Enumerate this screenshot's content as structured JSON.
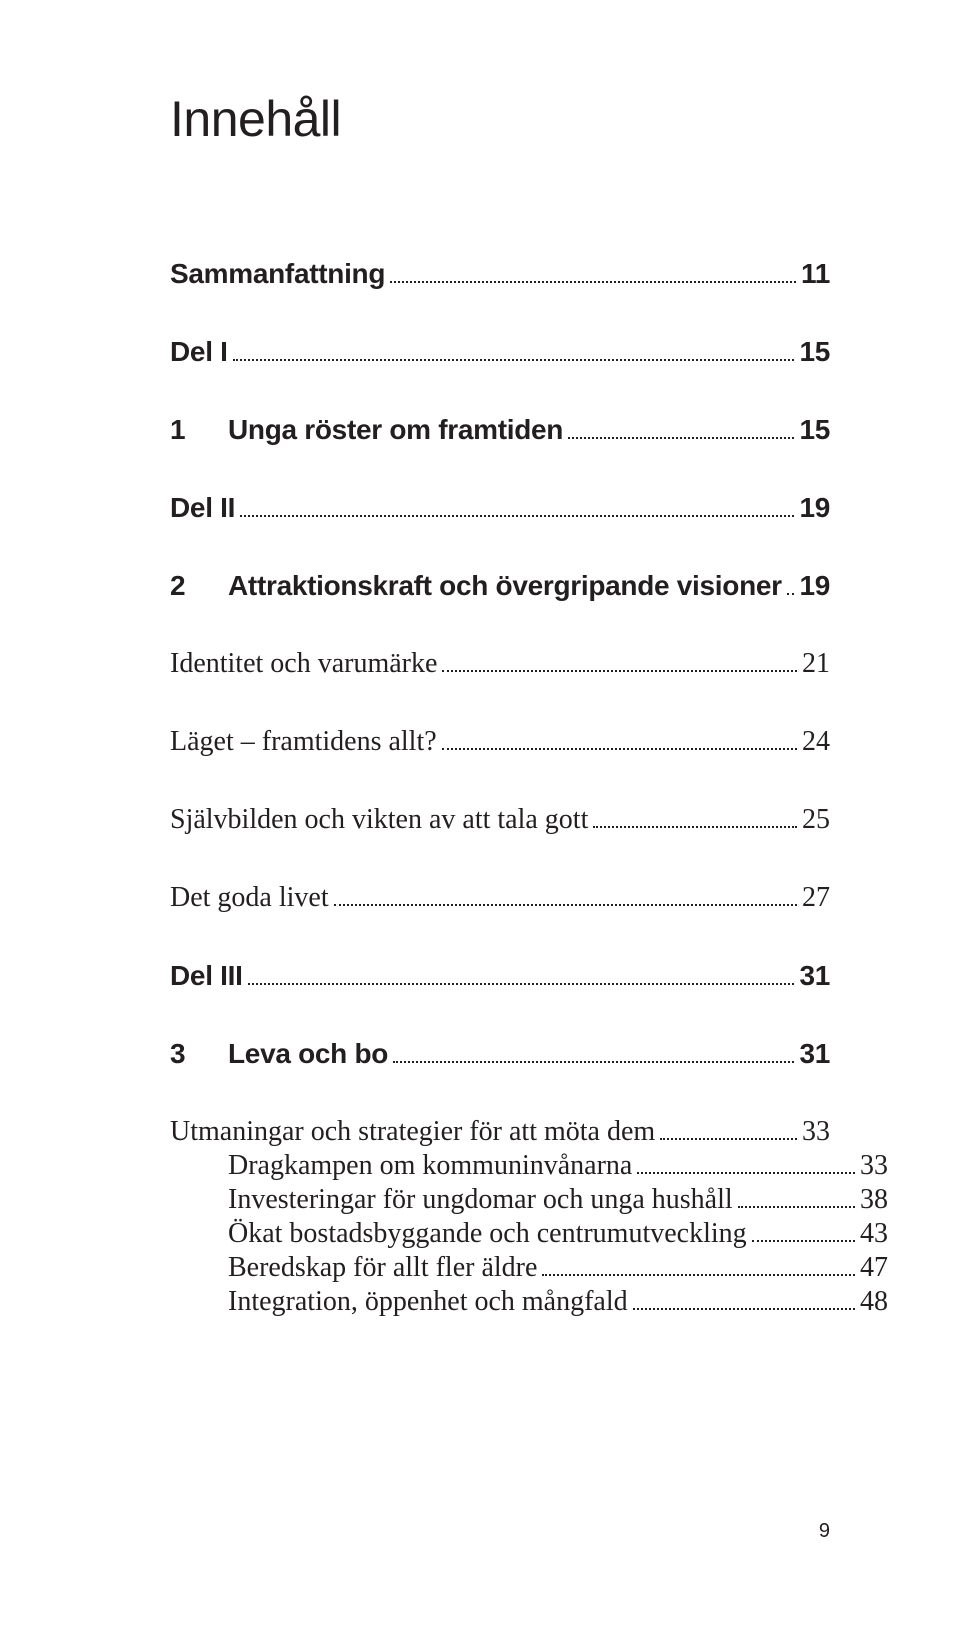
{
  "title": "Innehåll",
  "entries": [
    {
      "kind": "sans",
      "num": "",
      "label": "Sammanfattning",
      "page": "11",
      "gap": "none"
    },
    {
      "kind": "sans",
      "num": "",
      "label": "Del I",
      "page": "15",
      "gap": "l"
    },
    {
      "kind": "sans",
      "num": "1",
      "label": "Unga röster om framtiden",
      "page": "15",
      "gap": "l"
    },
    {
      "kind": "sans",
      "num": "",
      "label": "Del II",
      "page": "19",
      "gap": "l"
    },
    {
      "kind": "sans",
      "num": "2",
      "label": "Attraktionskraft och övergripande visioner",
      "page": "19",
      "gap": "l"
    },
    {
      "kind": "serif",
      "num": "",
      "label": "Identitet och varumärke",
      "page": "21",
      "gap": "l"
    },
    {
      "kind": "serif",
      "num": "",
      "label": "Läget – framtidens allt?",
      "page": "24",
      "gap": "l"
    },
    {
      "kind": "serif",
      "num": "",
      "label": "Självbilden och vikten av att tala gott",
      "page": "25",
      "gap": "l"
    },
    {
      "kind": "serif",
      "num": "",
      "label": "Det goda livet",
      "page": "27",
      "gap": "l"
    },
    {
      "kind": "sans",
      "num": "",
      "label": "Del III",
      "page": "31",
      "gap": "l"
    },
    {
      "kind": "sans",
      "num": "3",
      "label": "Leva och bo",
      "page": "31",
      "gap": "l"
    },
    {
      "kind": "serif",
      "num": "",
      "label": "Utmaningar och strategier för att möta dem",
      "page": "33",
      "gap": "l"
    },
    {
      "kind": "serif",
      "num": "",
      "label": "Dragkampen om kommuninvånarna",
      "page": "33",
      "indent": 1,
      "gap": "s"
    },
    {
      "kind": "serif",
      "num": "",
      "label": "Investeringar för ungdomar och unga hushåll",
      "page": "38",
      "indent": 1,
      "gap": "s"
    },
    {
      "kind": "serif",
      "num": "",
      "label": "Ökat bostadsbyggande och centrumutveckling",
      "page": "43",
      "indent": 1,
      "gap": "s"
    },
    {
      "kind": "serif",
      "num": "",
      "label": "Beredskap för allt fler äldre",
      "page": "47",
      "indent": 1,
      "gap": "s"
    },
    {
      "kind": "serif",
      "num": "",
      "label": "Integration, öppenhet och mångfald",
      "page": "48",
      "indent": 1,
      "gap": "s"
    }
  ],
  "footer_page": "9",
  "colors": {
    "text": "#231f20",
    "background": "#ffffff"
  },
  "typography": {
    "title_family": "sans-serif",
    "title_size_pt": 36,
    "sans_family": "sans-serif",
    "sans_size_pt": 20,
    "sans_weight": 700,
    "serif_family": "serif",
    "serif_size_pt": 20,
    "leader_style": "dotted"
  }
}
